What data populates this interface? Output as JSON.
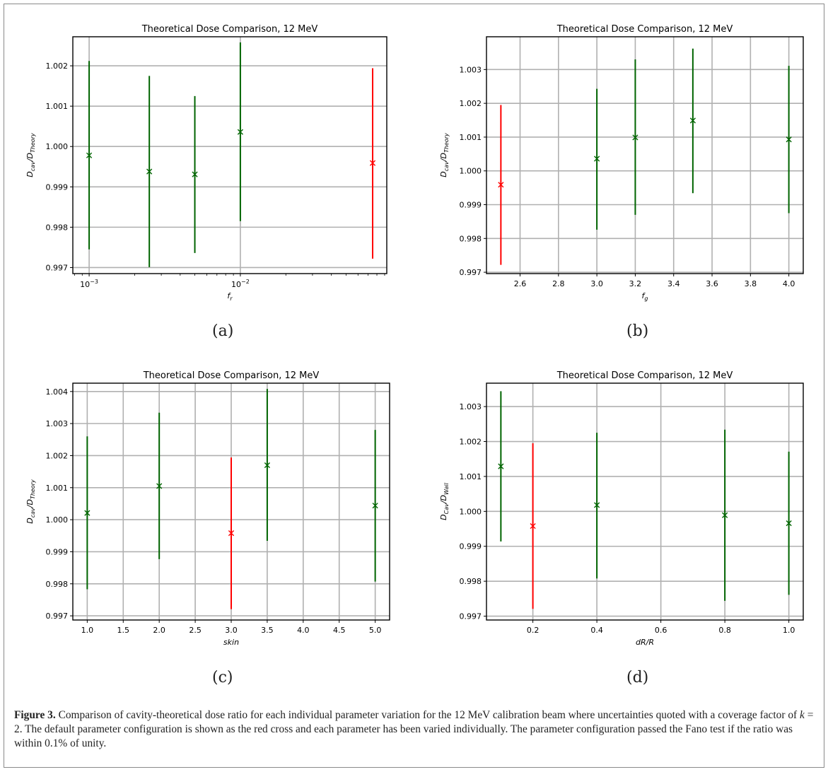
{
  "colors": {
    "default": "#ff0000",
    "variation": "#006400",
    "grid": "#b0b0b0"
  },
  "sublabels": [
    "(a)",
    "(b)",
    "(c)",
    "(d)"
  ],
  "caption": {
    "label": "Figure 3.",
    "text_before_k": " Comparison of cavity-theoretical dose ratio for each individual parameter variation for the 12 MeV calibration beam where uncertainties quoted with a coverage factor of ",
    "k_symbol": "k",
    "k_value": " = 2",
    "text_after_k": ". The default parameter configuration is shown as the red cross and each parameter has been varied individually. The parameter configuration passed the Fano test if the ratio was within 0.1% of unity."
  },
  "chart_data": [
    {
      "type": "scatter",
      "title": "Theoretical Dose Comparison, 12 MeV",
      "xlabel": {
        "main": "f",
        "sub": "r"
      },
      "ylabel": {
        "main": "D",
        "sub1": "cav",
        "sep": "/D",
        "sub2": "Theory"
      },
      "xscale": "log",
      "xlim": [
        0.00078,
        0.093
      ],
      "ylim": [
        0.99685,
        1.00272
      ],
      "xticks": [
        {
          "v": 0.001,
          "base": "10",
          "exp": "−3"
        },
        {
          "v": 0.01,
          "base": "10",
          "exp": "−2"
        }
      ],
      "yticks": [
        {
          "v": 0.997,
          "label": "0.997"
        },
        {
          "v": 0.998,
          "label": "0.998"
        },
        {
          "v": 0.999,
          "label": "0.999"
        },
        {
          "v": 1.0,
          "label": "1.000"
        },
        {
          "v": 1.001,
          "label": "1.001"
        },
        {
          "v": 1.002,
          "label": "1.002"
        }
      ],
      "grid": true,
      "points": [
        {
          "x": 0.001,
          "y": 0.99978,
          "lo": 0.99745,
          "hi": 1.00212,
          "default": false
        },
        {
          "x": 0.0025,
          "y": 0.99938,
          "lo": 0.99701,
          "hi": 1.00175,
          "default": false
        },
        {
          "x": 0.005,
          "y": 0.99931,
          "lo": 0.99736,
          "hi": 1.00125,
          "default": false
        },
        {
          "x": 0.01,
          "y": 1.00036,
          "lo": 0.99815,
          "hi": 1.00258,
          "default": false
        },
        {
          "x": 0.075,
          "y": 0.99959,
          "lo": 0.99722,
          "hi": 1.00194,
          "default": true
        }
      ]
    },
    {
      "type": "scatter",
      "title": "Theoretical Dose Comparison, 12 MeV",
      "xlabel": {
        "main": "f",
        "sub": "g"
      },
      "ylabel": {
        "main": "D",
        "sub1": "cav",
        "sep": "/D",
        "sub2": "Theory"
      },
      "xscale": "linear",
      "xlim": [
        2.425,
        4.075
      ],
      "ylim": [
        0.99696,
        1.00397
      ],
      "xticks": [
        {
          "v": 2.6,
          "label": "2.6"
        },
        {
          "v": 2.8,
          "label": "2.8"
        },
        {
          "v": 3.0,
          "label": "3.0"
        },
        {
          "v": 3.2,
          "label": "3.2"
        },
        {
          "v": 3.4,
          "label": "3.4"
        },
        {
          "v": 3.6,
          "label": "3.6"
        },
        {
          "v": 3.8,
          "label": "3.8"
        },
        {
          "v": 4.0,
          "label": "4.0"
        }
      ],
      "yticks": [
        {
          "v": 0.997,
          "label": "0.997"
        },
        {
          "v": 0.998,
          "label": "0.998"
        },
        {
          "v": 0.999,
          "label": "0.999"
        },
        {
          "v": 1.0,
          "label": "1.000"
        },
        {
          "v": 1.001,
          "label": "1.001"
        },
        {
          "v": 1.002,
          "label": "1.002"
        },
        {
          "v": 1.003,
          "label": "1.003"
        }
      ],
      "grid": true,
      "points": [
        {
          "x": 2.5,
          "y": 0.99959,
          "lo": 0.99722,
          "hi": 1.00195,
          "default": true
        },
        {
          "x": 3.0,
          "y": 1.00036,
          "lo": 0.99826,
          "hi": 1.00243,
          "default": false
        },
        {
          "x": 3.2,
          "y": 1.00099,
          "lo": 0.9987,
          "hi": 1.0033,
          "default": false
        },
        {
          "x": 3.5,
          "y": 1.00149,
          "lo": 0.99934,
          "hi": 1.00362,
          "default": false
        },
        {
          "x": 4.0,
          "y": 1.00093,
          "lo": 0.99875,
          "hi": 1.00311,
          "default": false
        }
      ]
    },
    {
      "type": "scatter",
      "title": "Theoretical Dose Comparison, 12 MeV",
      "xlabel": {
        "main": "skin",
        "sub": ""
      },
      "ylabel": {
        "main": "D",
        "sub1": "cav",
        "sep": "/D",
        "sub2": "Theory"
      },
      "xscale": "linear",
      "xlim": [
        0.8,
        5.2
      ],
      "ylim": [
        0.99687,
        1.00426
      ],
      "xticks": [
        {
          "v": 1.0,
          "label": "1.0"
        },
        {
          "v": 1.5,
          "label": "1.5"
        },
        {
          "v": 2.0,
          "label": "2.0"
        },
        {
          "v": 2.5,
          "label": "2.5"
        },
        {
          "v": 3.0,
          "label": "3.0"
        },
        {
          "v": 3.5,
          "label": "3.5"
        },
        {
          "v": 4.0,
          "label": "4.0"
        },
        {
          "v": 4.5,
          "label": "4.5"
        },
        {
          "v": 5.0,
          "label": "5.0"
        }
      ],
      "yticks": [
        {
          "v": 0.997,
          "label": "0.997"
        },
        {
          "v": 0.998,
          "label": "0.998"
        },
        {
          "v": 0.999,
          "label": "0.999"
        },
        {
          "v": 1.0,
          "label": "1.000"
        },
        {
          "v": 1.001,
          "label": "1.001"
        },
        {
          "v": 1.002,
          "label": "1.002"
        },
        {
          "v": 1.003,
          "label": "1.003"
        },
        {
          "v": 1.004,
          "label": "1.004"
        }
      ],
      "grid": true,
      "points": [
        {
          "x": 1.0,
          "y": 1.00021,
          "lo": 0.99783,
          "hi": 1.0026,
          "default": false
        },
        {
          "x": 2.0,
          "y": 1.00105,
          "lo": 0.99877,
          "hi": 1.00334,
          "default": false
        },
        {
          "x": 3.0,
          "y": 0.99958,
          "lo": 0.99721,
          "hi": 1.00194,
          "default": true
        },
        {
          "x": 3.5,
          "y": 1.0017,
          "lo": 0.99934,
          "hi": 1.00408,
          "default": false
        },
        {
          "x": 5.0,
          "y": 1.00044,
          "lo": 0.99807,
          "hi": 1.0028,
          "default": false
        }
      ]
    },
    {
      "type": "scatter",
      "title": "Theoretical Dose Comparison, 12 MeV",
      "xlabel": {
        "main": "dR/R",
        "sub": ""
      },
      "ylabel": {
        "main": "D",
        "sub1": "Cav",
        "sep": "/D",
        "sub2": "Wall"
      },
      "xscale": "linear",
      "xlim": [
        0.055,
        1.045
      ],
      "ylim": [
        0.99689,
        1.00367
      ],
      "xticks": [
        {
          "v": 0.2,
          "label": "0.2"
        },
        {
          "v": 0.4,
          "label": "0.4"
        },
        {
          "v": 0.6,
          "label": "0.6"
        },
        {
          "v": 0.8,
          "label": "0.8"
        },
        {
          "v": 1.0,
          "label": "1.0"
        }
      ],
      "yticks": [
        {
          "v": 0.997,
          "label": "0.997"
        },
        {
          "v": 0.998,
          "label": "0.998"
        },
        {
          "v": 0.999,
          "label": "0.999"
        },
        {
          "v": 1.0,
          "label": "1.000"
        },
        {
          "v": 1.001,
          "label": "1.001"
        },
        {
          "v": 1.002,
          "label": "1.002"
        },
        {
          "v": 1.003,
          "label": "1.003"
        }
      ],
      "grid": true,
      "points": [
        {
          "x": 0.1,
          "y": 1.00129,
          "lo": 0.99914,
          "hi": 1.00344,
          "default": false
        },
        {
          "x": 0.2,
          "y": 0.99958,
          "lo": 0.99721,
          "hi": 1.00195,
          "default": true
        },
        {
          "x": 0.4,
          "y": 1.00018,
          "lo": 0.99808,
          "hi": 1.00225,
          "default": false
        },
        {
          "x": 0.8,
          "y": 0.99989,
          "lo": 0.99744,
          "hi": 1.00234,
          "default": false
        },
        {
          "x": 1.0,
          "y": 0.99966,
          "lo": 0.99761,
          "hi": 1.00171,
          "default": false
        }
      ]
    }
  ]
}
